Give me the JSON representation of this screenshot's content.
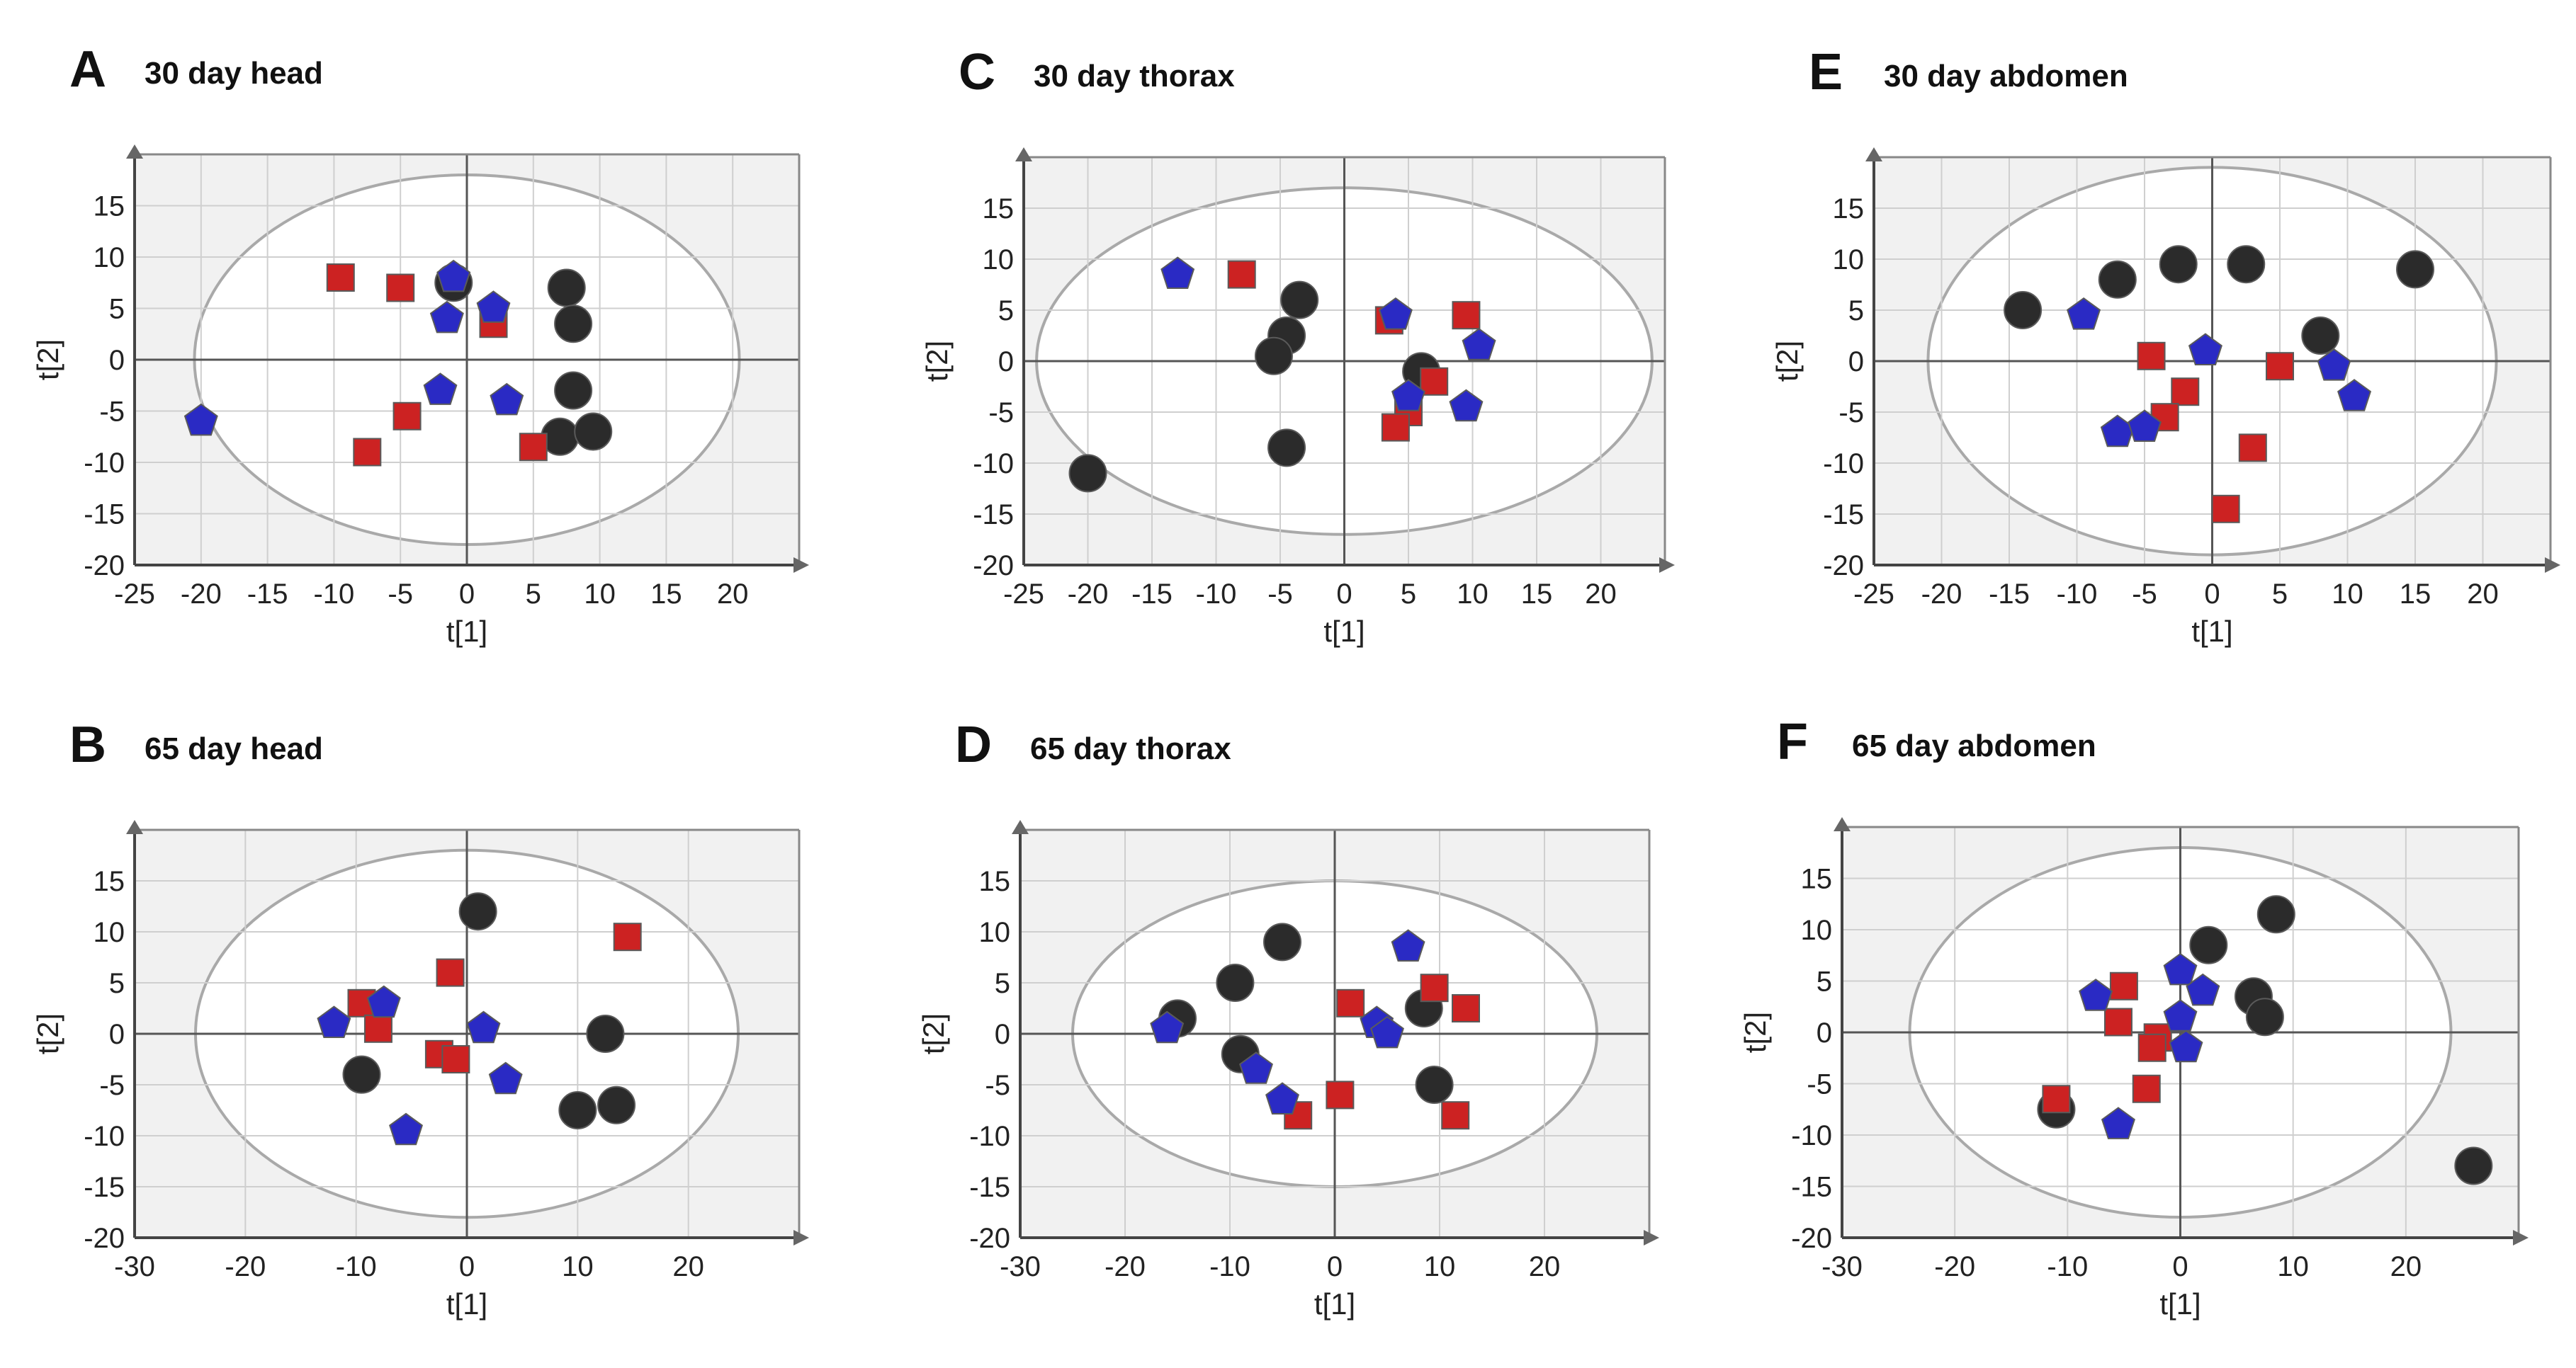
{
  "colors": {
    "circle": "#2b2b2b",
    "square": "#cc2222",
    "pentagon": "#2a2ac4",
    "grid": "#cfcfcf",
    "plot_background": "#f1f1f1",
    "ellipse": "#a9a9a9"
  },
  "chart_data": [
    {
      "type": "scatter",
      "panel": "A",
      "title": "30 day head",
      "xlabel": "t[1]",
      "ylabel": "t[2]",
      "xlim": [
        -25,
        25
      ],
      "ylim": [
        -20,
        20
      ],
      "xticks": [
        -25,
        -20,
        -15,
        -10,
        -5,
        0,
        5,
        10,
        15,
        20
      ],
      "yticks": [
        -20,
        -15,
        -10,
        -5,
        0,
        5,
        10,
        15
      ],
      "grid": true,
      "ellipse": {
        "rx": 20.5,
        "ry": 18
      },
      "series": [
        {
          "marker": "circle",
          "points": [
            [
              -1,
              7.5
            ],
            [
              7.5,
              7
            ],
            [
              8,
              3.5
            ],
            [
              8,
              -3
            ],
            [
              7,
              -7.5
            ],
            [
              9.5,
              -7
            ]
          ]
        },
        {
          "marker": "square",
          "points": [
            [
              -9.5,
              8
            ],
            [
              -5,
              7
            ],
            [
              2,
              3.5
            ],
            [
              -4.5,
              -5.5
            ],
            [
              -7.5,
              -9
            ],
            [
              5,
              -8.5
            ]
          ]
        },
        {
          "marker": "pentagon",
          "points": [
            [
              -1,
              8
            ],
            [
              -1.5,
              4
            ],
            [
              2,
              5
            ],
            [
              -2,
              -3
            ],
            [
              3,
              -4
            ],
            [
              -20,
              -6
            ]
          ]
        }
      ]
    },
    {
      "type": "scatter",
      "panel": "B",
      "title": "65 day head",
      "xlabel": "t[1]",
      "ylabel": "t[2]",
      "xlim": [
        -30,
        30
      ],
      "ylim": [
        -20,
        20
      ],
      "xticks": [
        -30,
        -20,
        -10,
        0,
        10,
        20
      ],
      "yticks": [
        -20,
        -15,
        -10,
        -5,
        0,
        5,
        10,
        15
      ],
      "grid": true,
      "ellipse": {
        "rx": 24.5,
        "ry": 18
      },
      "series": [
        {
          "marker": "circle",
          "points": [
            [
              1,
              12
            ],
            [
              12.5,
              0
            ],
            [
              -9.5,
              -4
            ],
            [
              10,
              -7.5
            ],
            [
              13.5,
              -7
            ]
          ]
        },
        {
          "marker": "square",
          "points": [
            [
              -9.5,
              3
            ],
            [
              -8,
              0.5
            ],
            [
              -1.5,
              6
            ],
            [
              -2.5,
              -2
            ],
            [
              -1,
              -2.5
            ],
            [
              14.5,
              9.5
            ]
          ]
        },
        {
          "marker": "pentagon",
          "points": [
            [
              -12,
              1
            ],
            [
              -7.5,
              3
            ],
            [
              1.5,
              0.5
            ],
            [
              3.5,
              -4.5
            ],
            [
              -5.5,
              -9.5
            ]
          ]
        }
      ]
    },
    {
      "type": "scatter",
      "panel": "C",
      "title": "30 day thorax",
      "xlabel": "t[1]",
      "ylabel": "t[2]",
      "xlim": [
        -25,
        25
      ],
      "ylim": [
        -20,
        20
      ],
      "xticks": [
        -25,
        -20,
        -15,
        -10,
        -5,
        0,
        5,
        10,
        15,
        20
      ],
      "yticks": [
        -20,
        -15,
        -10,
        -5,
        0,
        5,
        10,
        15
      ],
      "grid": true,
      "ellipse": {
        "rx": 24,
        "ry": 17
      },
      "series": [
        {
          "marker": "circle",
          "points": [
            [
              -3.5,
              6
            ],
            [
              -4.5,
              2.5
            ],
            [
              -5.5,
              0.5
            ],
            [
              6,
              -1
            ],
            [
              -4.5,
              -8.5
            ],
            [
              -20,
              -11
            ]
          ]
        },
        {
          "marker": "square",
          "points": [
            [
              -8,
              8.5
            ],
            [
              3.5,
              4
            ],
            [
              9.5,
              4.5
            ],
            [
              5,
              -5
            ],
            [
              7,
              -2
            ],
            [
              4,
              -6.5
            ]
          ]
        },
        {
          "marker": "pentagon",
          "points": [
            [
              -13,
              8.5
            ],
            [
              4,
              4.5
            ],
            [
              10.5,
              1.5
            ],
            [
              5,
              -3.5
            ],
            [
              9.5,
              -4.5
            ]
          ]
        }
      ]
    },
    {
      "type": "scatter",
      "panel": "D",
      "title": "65 day thorax",
      "xlabel": "t[1]",
      "ylabel": "t[2]",
      "xlim": [
        -30,
        30
      ],
      "ylim": [
        -20,
        20
      ],
      "xticks": [
        -30,
        -20,
        -10,
        0,
        10,
        20
      ],
      "yticks": [
        -20,
        -15,
        -10,
        -5,
        0,
        5,
        10,
        15
      ],
      "grid": true,
      "ellipse": {
        "rx": 25,
        "ry": 15
      },
      "series": [
        {
          "marker": "circle",
          "points": [
            [
              -5,
              9
            ],
            [
              -9.5,
              5
            ],
            [
              -15,
              1.5
            ],
            [
              -9,
              -2
            ],
            [
              8.5,
              2.5
            ],
            [
              9.5,
              -5
            ]
          ]
        },
        {
          "marker": "square",
          "points": [
            [
              1.5,
              3
            ],
            [
              9.5,
              4.5
            ],
            [
              12.5,
              2.5
            ],
            [
              0.5,
              -6
            ],
            [
              -3.5,
              -8
            ],
            [
              11.5,
              -8
            ]
          ]
        },
        {
          "marker": "pentagon",
          "points": [
            [
              7,
              8.5
            ],
            [
              -16,
              0.5
            ],
            [
              4,
              1
            ],
            [
              5,
              0
            ],
            [
              -7.5,
              -3.5
            ],
            [
              -5,
              -6.5
            ]
          ]
        }
      ]
    },
    {
      "type": "scatter",
      "panel": "E",
      "title": "30 day abdomen",
      "xlabel": "t[1]",
      "ylabel": "t[2]",
      "xlim": [
        -25,
        25
      ],
      "ylim": [
        -20,
        20
      ],
      "xticks": [
        -25,
        -20,
        -15,
        -10,
        -5,
        0,
        5,
        10,
        15,
        20
      ],
      "yticks": [
        -20,
        -15,
        -10,
        -5,
        0,
        5,
        10,
        15
      ],
      "grid": true,
      "ellipse": {
        "rx": 21,
        "ry": 19
      },
      "series": [
        {
          "marker": "circle",
          "points": [
            [
              -14,
              5
            ],
            [
              -7,
              8
            ],
            [
              -2.5,
              9.5
            ],
            [
              2.5,
              9.5
            ],
            [
              15,
              9
            ],
            [
              8,
              2.5
            ]
          ]
        },
        {
          "marker": "square",
          "points": [
            [
              -4.5,
              0.5
            ],
            [
              -2,
              -3
            ],
            [
              -3.5,
              -5.5
            ],
            [
              5,
              -0.5
            ],
            [
              3,
              -8.5
            ],
            [
              1,
              -14.5
            ]
          ]
        },
        {
          "marker": "pentagon",
          "points": [
            [
              -9.5,
              4.5
            ],
            [
              -0.5,
              1
            ],
            [
              9,
              -0.5
            ],
            [
              10.5,
              -3.5
            ],
            [
              -7,
              -7
            ],
            [
              -5,
              -6.5
            ]
          ]
        }
      ]
    },
    {
      "type": "scatter",
      "panel": "F",
      "title": "65 day abdomen",
      "xlabel": "t[1]",
      "ylabel": "t[2]",
      "xlim": [
        -30,
        30
      ],
      "ylim": [
        -20,
        20
      ],
      "xticks": [
        -30,
        -20,
        -10,
        0,
        10,
        20
      ],
      "yticks": [
        -20,
        -15,
        -10,
        -5,
        0,
        5,
        10,
        15
      ],
      "grid": true,
      "ellipse": {
        "rx": 24,
        "ry": 18
      },
      "series": [
        {
          "marker": "circle",
          "points": [
            [
              8.5,
              11.5
            ],
            [
              2.5,
              8.5
            ],
            [
              6.5,
              3.5
            ],
            [
              7.5,
              1.5
            ],
            [
              -11,
              -7.5
            ],
            [
              26,
              -13
            ]
          ]
        },
        {
          "marker": "square",
          "points": [
            [
              -5,
              4.5
            ],
            [
              -5.5,
              1
            ],
            [
              -2,
              -0.5
            ],
            [
              -2.5,
              -1.5
            ],
            [
              -3,
              -5.5
            ],
            [
              -11,
              -6.5
            ]
          ]
        },
        {
          "marker": "pentagon",
          "points": [
            [
              -7.5,
              3.5
            ],
            [
              0,
              6
            ],
            [
              2,
              4
            ],
            [
              0,
              1.5
            ],
            [
              0.5,
              -1.5
            ],
            [
              -5.5,
              -9
            ]
          ]
        }
      ]
    }
  ]
}
